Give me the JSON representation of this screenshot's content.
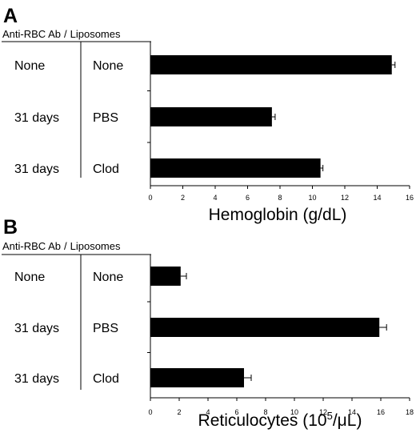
{
  "chart_data": [
    {
      "type": "bar",
      "orientation": "horizontal",
      "panel": "A",
      "header": {
        "antibody": "Anti-RBC  Ab",
        "separator": "/",
        "liposomes": "Liposomes"
      },
      "rows": [
        {
          "antibody": "None",
          "liposomes": "None",
          "value": 14.9,
          "error": 0.2
        },
        {
          "antibody": "31 days",
          "liposomes": "PBS",
          "value": 7.5,
          "error": 0.2
        },
        {
          "antibody": "31 days",
          "liposomes": "Clod",
          "value": 10.5,
          "error": 0.15
        }
      ],
      "xlabel": "Hemoglobin (g/dL)",
      "xlim": [
        0,
        16
      ],
      "ticks": [
        0,
        2,
        4,
        6,
        8,
        10,
        12,
        14,
        16
      ],
      "grid": false
    },
    {
      "type": "bar",
      "orientation": "horizontal",
      "panel": "B",
      "header": {
        "antibody": "Anti-RBC  Ab",
        "separator": "/",
        "liposomes": "Liposomes"
      },
      "rows": [
        {
          "antibody": "None",
          "liposomes": "None",
          "value": 2.1,
          "error": 0.4
        },
        {
          "antibody": "31 days",
          "liposomes": "PBS",
          "value": 15.9,
          "error": 0.5
        },
        {
          "antibody": "31 days",
          "liposomes": "Clod",
          "value": 6.5,
          "error": 0.5
        }
      ],
      "xlabel_prefix": "Reticulocytes (10",
      "xlabel_sup": "5",
      "xlabel_suffix": "/μL)",
      "xlim": [
        0,
        18
      ],
      "ticks": [
        0,
        2,
        4,
        6,
        8,
        10,
        12,
        14,
        16,
        18
      ],
      "grid": false
    }
  ]
}
